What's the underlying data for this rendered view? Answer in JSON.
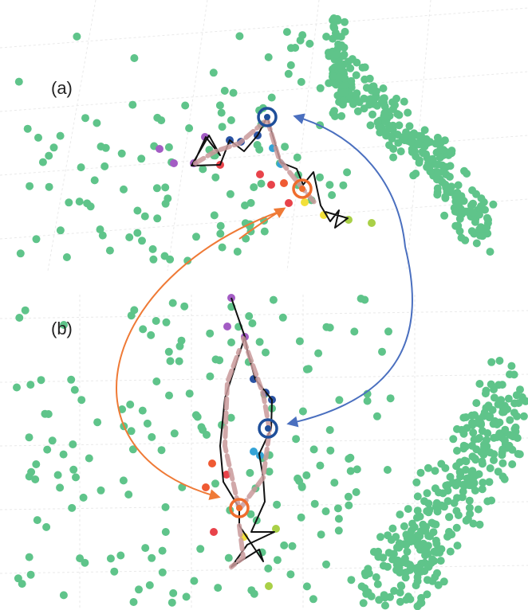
{
  "panels": [
    {
      "id": "a",
      "label": "(a)"
    },
    {
      "id": "b",
      "label": "(b)"
    }
  ],
  "colors": {
    "point_green": "#5fc48a",
    "grid": "#e6e6e6",
    "trajectory": "#111111",
    "flow_arrow": "#c9999a",
    "highlight_blue": "#1f4f9a",
    "highlight_orange": "#ef6d2e",
    "connector_blue": "#4a6fbf",
    "connector_orange": "#ef7a36",
    "purple": "#a35cc4",
    "dark_blue": "#2a53a4",
    "light_blue": "#33a3d6",
    "red": "#e8434a",
    "orange_red": "#ef5a33",
    "yellow": "#f2e03a",
    "yellow_green": "#a9d047"
  },
  "icons": {
    "highlight_marker": "double-ring-circle-icon",
    "connector": "curved-arrow-icon"
  }
}
